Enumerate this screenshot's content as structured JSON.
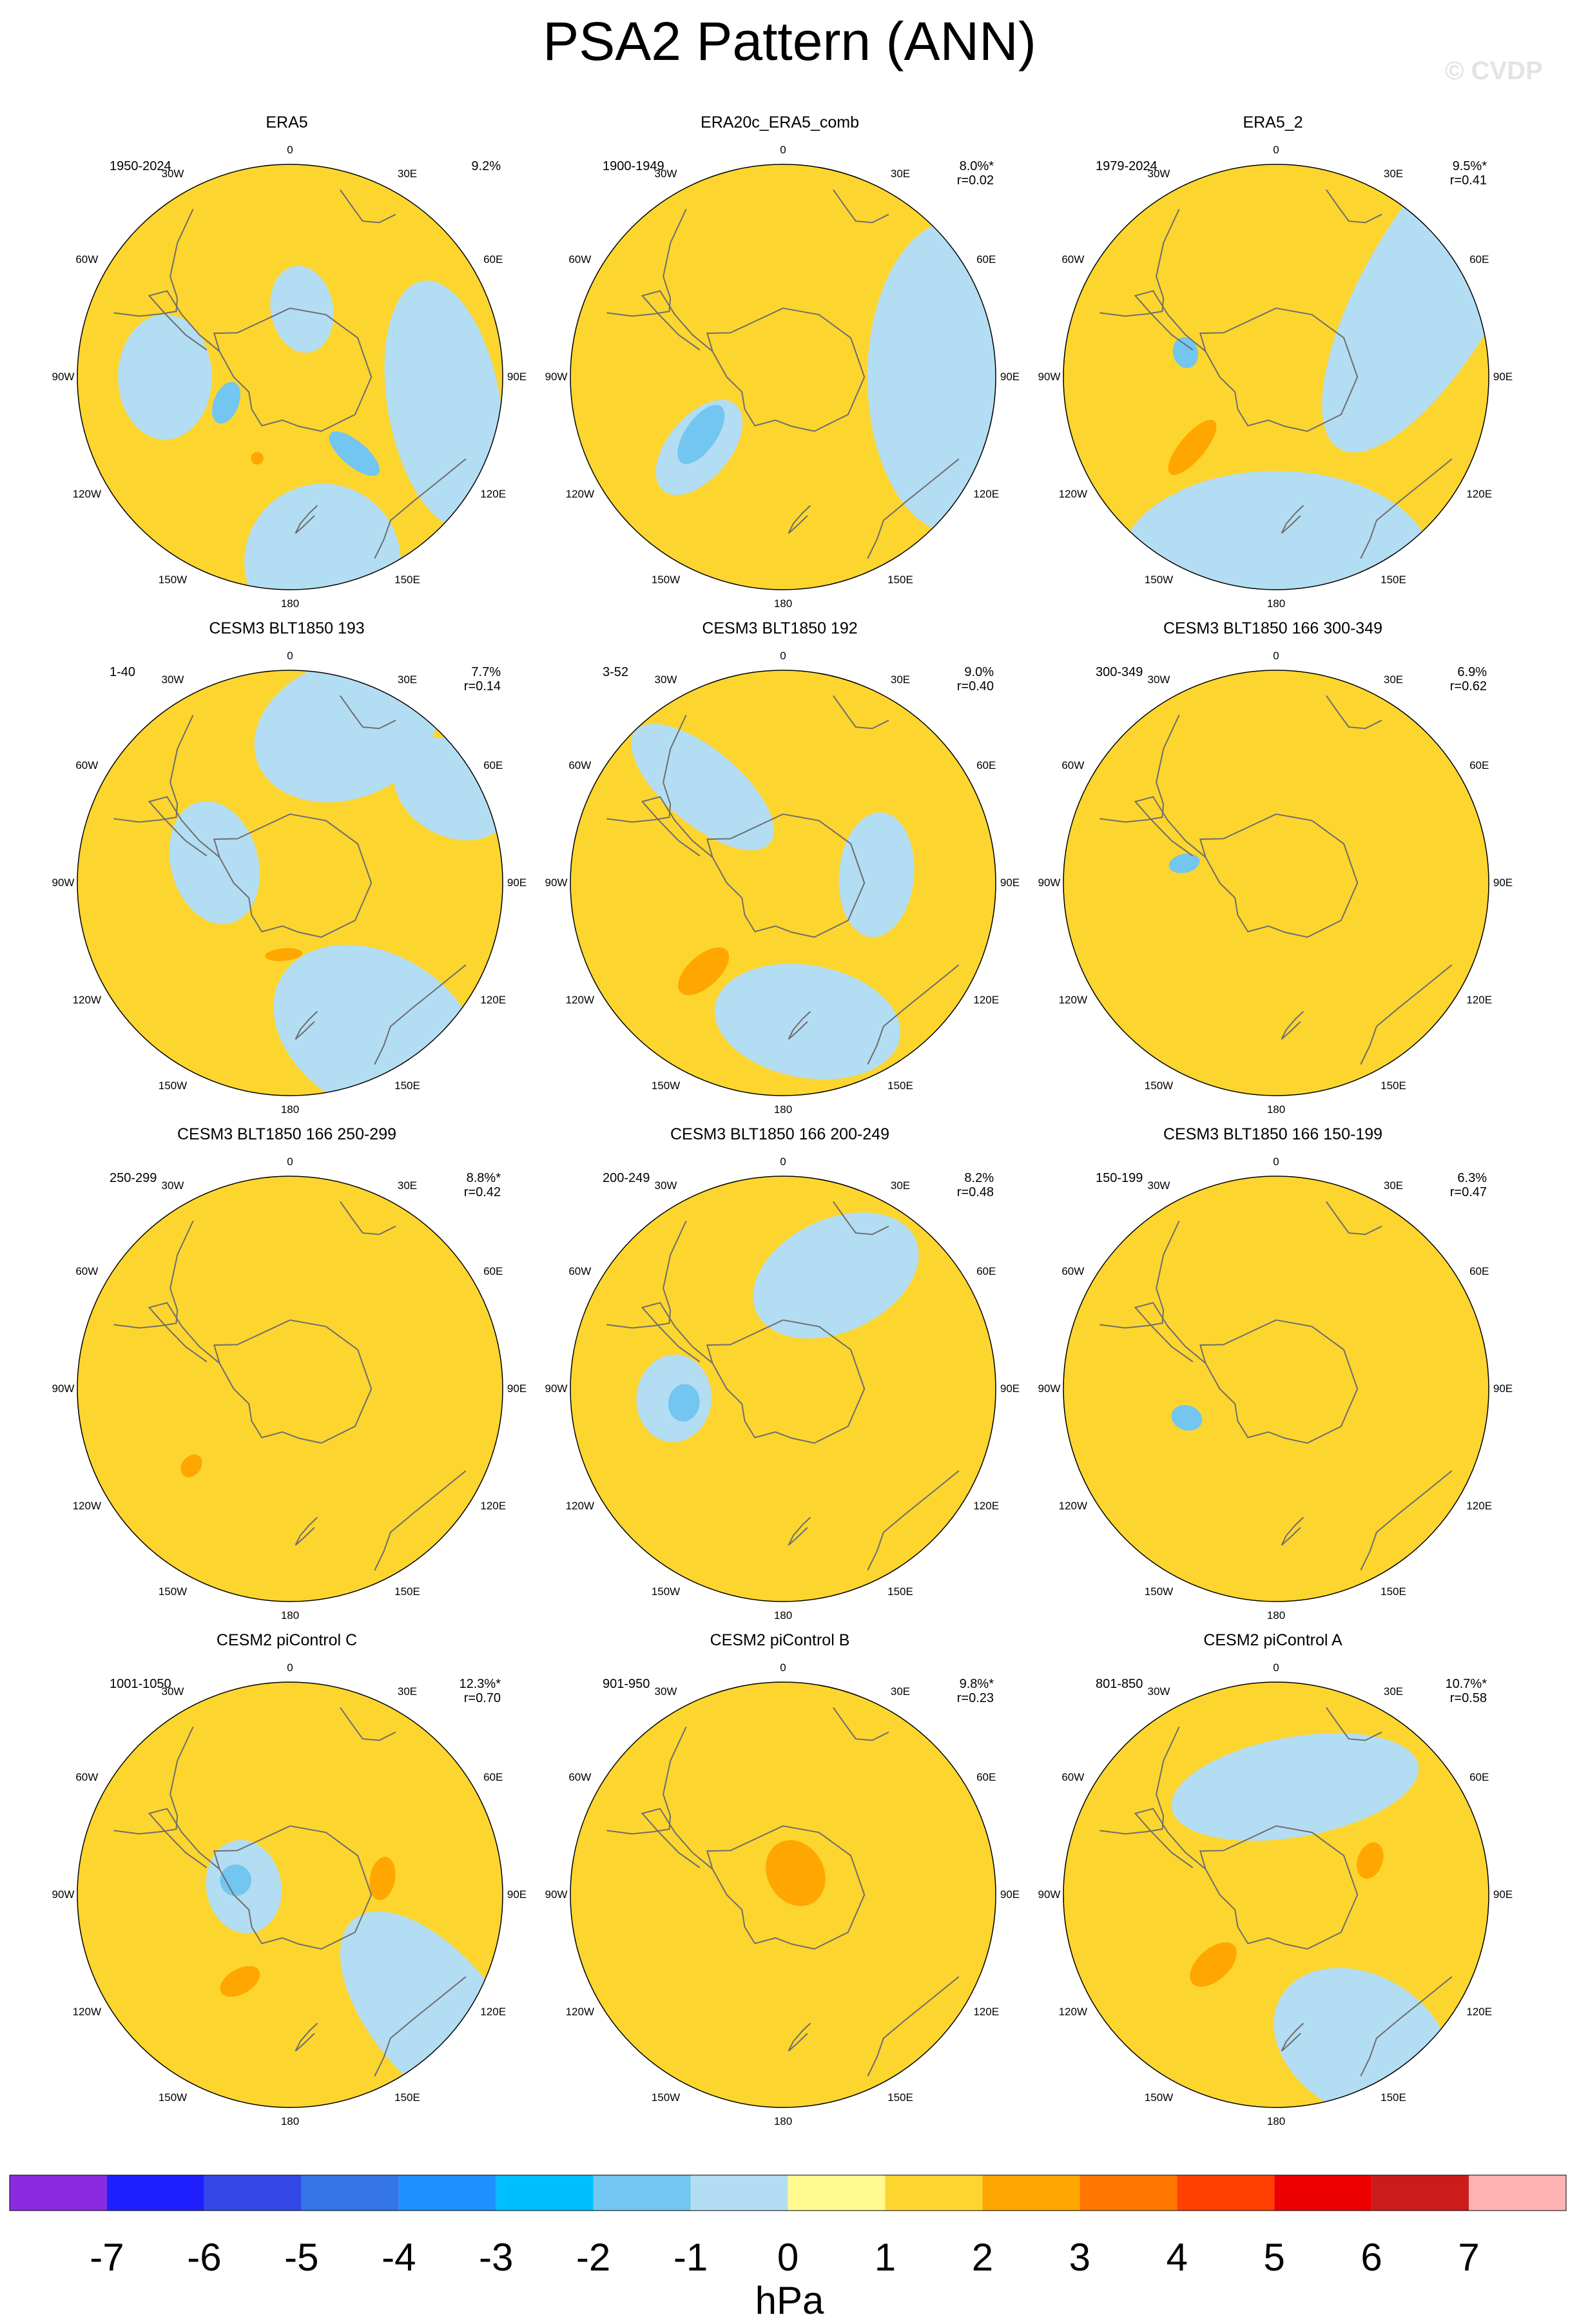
{
  "title": "PSA2 Pattern (ANN)",
  "watermark": "© CVDP",
  "lon_labels": [
    "0",
    "30E",
    "60E",
    "90E",
    "120E",
    "150E",
    "180",
    "150W",
    "120W",
    "90W",
    "60W",
    "30W"
  ],
  "colors": {
    "land_outline": "#6e6e6e",
    "map_border": "#000000",
    "levels": [
      "#8A2BE2",
      "#1F1FFF",
      "#3348E6",
      "#3375E6",
      "#1E90FF",
      "#00BFFF",
      "#72C6F0",
      "#B3DDF2",
      "#FFF98F",
      "#FDD52F",
      "#FFA600",
      "#FF7700",
      "#FF4000",
      "#EE0000",
      "#CC1B1B",
      "#FFB3B3"
    ]
  },
  "chart_data": {
    "type": "polar-contour-map",
    "projection": "south polar stereographic",
    "variable": "sea level pressure anomaly",
    "colorbar": {
      "unit": "hPa",
      "ticks": [
        -7,
        -6,
        -5,
        -4,
        -3,
        -2,
        -1,
        0,
        1,
        2,
        3,
        4,
        5,
        6,
        7
      ],
      "tick_labels": [
        "-7",
        "-6",
        "-5",
        "-4",
        "-3",
        "-2",
        "-1",
        "0",
        "1",
        "2",
        "3",
        "4",
        "5",
        "6",
        "7"
      ]
    },
    "panels": [
      {
        "title": "ERA5",
        "years": "1950-2024",
        "pct": "9.2%",
        "r": "",
        "features": [
          {
            "level": -1,
            "lon": 10,
            "colat": 22,
            "w": 10,
            "h": 14
          },
          {
            "level": -1,
            "lon": 270,
            "colat": 40,
            "w": 20,
            "h": 15
          },
          {
            "level": -1,
            "lon": 100,
            "colat": 50,
            "w": 40,
            "h": 18
          },
          {
            "level": -1,
            "lon": 170,
            "colat": 60,
            "w": 25,
            "h": 25
          },
          {
            "level": -2,
            "lon": 248,
            "colat": 22,
            "w": 7,
            "h": 4
          },
          {
            "level": -2,
            "lon": 140,
            "colat": 32,
            "w": 10,
            "h": 4
          },
          {
            "level": 1,
            "lon": 210,
            "colat": 28,
            "w": 12,
            "h": 5
          },
          {
            "level": 2,
            "lon": 202,
            "colat": 28,
            "w": 2,
            "h": 2
          }
        ]
      },
      {
        "title": "ERA20c_ERA5_comb",
        "years": "1900-1949",
        "pct": "8.0%*",
        "r": "r=0.02",
        "features": [
          {
            "level": -1,
            "lon": 90,
            "colat": 55,
            "w": 50,
            "h": 28
          },
          {
            "level": -1,
            "lon": 230,
            "colat": 35,
            "w": 18,
            "h": 10
          },
          {
            "level": -2,
            "lon": 235,
            "colat": 32,
            "w": 11,
            "h": 5
          }
        ]
      },
      {
        "title": "ERA5_2",
        "years": "1979-2024",
        "pct": "9.5%*",
        "r": "r=0.41",
        "features": [
          {
            "level": -1,
            "lon": 180,
            "colat": 60,
            "w": 50,
            "h": 30
          },
          {
            "level": -1,
            "lon": 60,
            "colat": 58,
            "w": 60,
            "h": 22
          },
          {
            "level": -2,
            "lon": 285,
            "colat": 30,
            "w": 5,
            "h": 4
          },
          {
            "level": 1,
            "lon": 230,
            "colat": 35,
            "w": 20,
            "h": 8
          },
          {
            "level": 2,
            "lon": 230,
            "colat": 35,
            "w": 11,
            "h": 4
          }
        ]
      },
      {
        "title": "CESM3 BLT1850 193",
        "years": "1-40",
        "pct": "7.7%",
        "r": "r=0.14",
        "features": [
          {
            "level": -1,
            "lon": 20,
            "colat": 52,
            "w": 30,
            "h": 22
          },
          {
            "level": -1,
            "lon": 285,
            "colat": 25,
            "w": 20,
            "h": 14
          },
          {
            "level": -1,
            "lon": 150,
            "colat": 55,
            "w": 35,
            "h": 25
          },
          {
            "level": -1,
            "lon": 60,
            "colat": 60,
            "w": 15,
            "h": 20
          },
          {
            "level": 2,
            "lon": 185,
            "colat": 23,
            "w": 6,
            "h": 2
          }
        ]
      },
      {
        "title": "CESM3 BLT1850 192",
        "years": "3-52",
        "pct": "9.0%",
        "r": "r=0.40",
        "features": [
          {
            "level": -1,
            "lon": 320,
            "colat": 40,
            "w": 28,
            "h": 12
          },
          {
            "level": -1,
            "lon": 85,
            "colat": 30,
            "w": 20,
            "h": 12
          },
          {
            "level": -1,
            "lon": 170,
            "colat": 45,
            "w": 30,
            "h": 18
          },
          {
            "level": 1,
            "lon": 225,
            "colat": 38,
            "w": 20,
            "h": 10
          },
          {
            "level": 2,
            "lon": 222,
            "colat": 38,
            "w": 10,
            "h": 5
          }
        ]
      },
      {
        "title": "CESM3 BLT1850 166 300-349",
        "years": "300-349",
        "pct": "6.9%",
        "r": "r=0.62",
        "features": [
          {
            "level": 1,
            "lon": 70,
            "colat": 45,
            "w": 24,
            "h": 18
          },
          {
            "level": 1,
            "lon": 250,
            "colat": 55,
            "w": 22,
            "h": 10
          },
          {
            "level": 1,
            "lon": 110,
            "colat": 30,
            "w": 18,
            "h": 10
          },
          {
            "level": -2,
            "lon": 282,
            "colat": 30,
            "w": 3,
            "h": 5
          }
        ]
      },
      {
        "title": "CESM3 BLT1850 166 250-299",
        "years": "250-299",
        "pct": "8.8%*",
        "r": "r=0.42",
        "features": [
          {
            "level": 1,
            "lon": 10,
            "colat": 48,
            "w": 25,
            "h": 12
          },
          {
            "level": 1,
            "lon": 85,
            "colat": 55,
            "w": 20,
            "h": 22
          },
          {
            "level": 1,
            "lon": 230,
            "colat": 40,
            "w": 18,
            "h": 10
          },
          {
            "level": 2,
            "lon": 232,
            "colat": 40,
            "w": 4,
            "h": 3
          }
        ]
      },
      {
        "title": "CESM3 BLT1850 166 200-249",
        "years": "200-249",
        "pct": "8.2%",
        "r": "r=0.48",
        "features": [
          {
            "level": -1,
            "lon": 25,
            "colat": 40,
            "w": 28,
            "h": 18
          },
          {
            "level": -1,
            "lon": 265,
            "colat": 35,
            "w": 14,
            "h": 12
          },
          {
            "level": -2,
            "lon": 262,
            "colat": 32,
            "w": 6,
            "h": 5
          }
        ]
      },
      {
        "title": "CESM3 BLT1850 166 150-199",
        "years": "150-199",
        "pct": "6.3%",
        "r": "r=0.47",
        "features": [
          {
            "level": 1,
            "lon": 60,
            "colat": 55,
            "w": 24,
            "h": 20
          },
          {
            "level": 1,
            "lon": 185,
            "colat": 25,
            "w": 15,
            "h": 12
          },
          {
            "level": 1,
            "lon": 320,
            "colat": 45,
            "w": 18,
            "h": 10
          },
          {
            "level": 1,
            "lon": 200,
            "colat": 62,
            "w": 30,
            "h": 10
          },
          {
            "level": -2,
            "lon": 252,
            "colat": 30,
            "w": 4,
            "h": 5
          }
        ]
      },
      {
        "title": "CESM2 piControl C",
        "years": "1001-1050",
        "pct": "12.3%*",
        "r": "r=0.70",
        "features": [
          {
            "level": -1,
            "lon": 280,
            "colat": 15,
            "w": 15,
            "h": 12
          },
          {
            "level": -1,
            "lon": 130,
            "colat": 60,
            "w": 40,
            "h": 20
          },
          {
            "level": -2,
            "lon": 285,
            "colat": 18,
            "w": 5,
            "h": 5
          },
          {
            "level": 2,
            "lon": 80,
            "colat": 30,
            "w": 7,
            "h": 4
          },
          {
            "level": 2,
            "lon": 210,
            "colat": 32,
            "w": 7,
            "h": 4
          }
        ]
      },
      {
        "title": "CESM2 piControl B",
        "years": "901-950",
        "pct": "9.8%*",
        "r": "r=0.23",
        "features": [
          {
            "level": 1,
            "lon": 0,
            "colat": 22,
            "w": 26,
            "h": 22
          },
          {
            "level": 2,
            "lon": 30,
            "colat": 8,
            "w": 9,
            "h": 11
          },
          {
            "level": 1,
            "lon": 290,
            "colat": 55,
            "w": 18,
            "h": 18
          }
        ]
      },
      {
        "title": "CESM2 piControl A",
        "years": "801-850",
        "pct": "10.7%*",
        "r": "r=0.58",
        "features": [
          {
            "level": -1,
            "lon": 10,
            "colat": 35,
            "w": 40,
            "h": 16
          },
          {
            "level": -1,
            "lon": 150,
            "colat": 55,
            "w": 30,
            "h": 22
          },
          {
            "level": 1,
            "lon": 225,
            "colat": 30,
            "w": 18,
            "h": 10
          },
          {
            "level": 2,
            "lon": 222,
            "colat": 30,
            "w": 9,
            "h": 5
          },
          {
            "level": 2,
            "lon": 70,
            "colat": 32,
            "w": 6,
            "h": 4
          }
        ]
      }
    ]
  }
}
